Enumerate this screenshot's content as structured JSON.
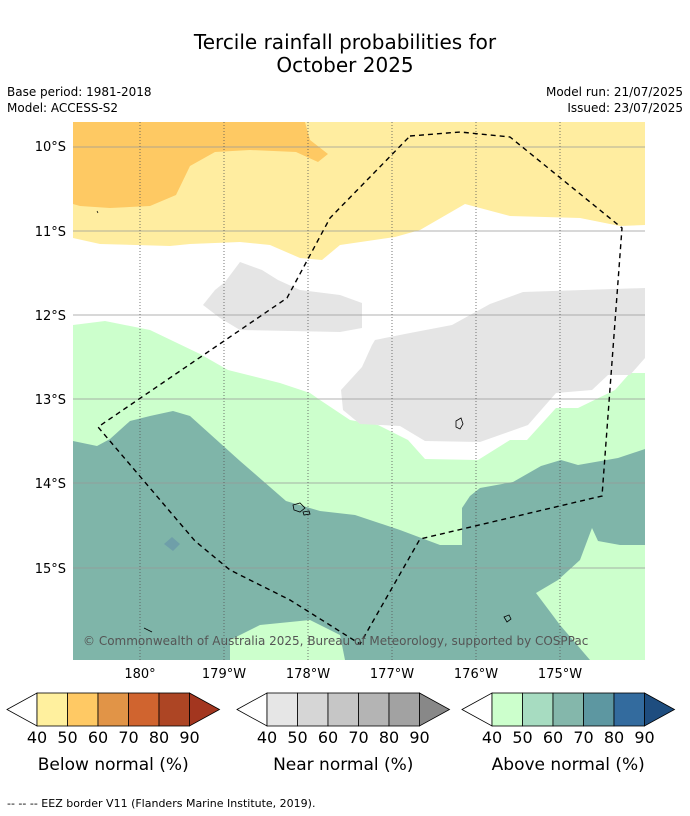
{
  "title_line1": "Tercile rainfall probabilities for",
  "title_line2": "October 2025",
  "meta": {
    "base_period": "Base period: 1981-2018",
    "model": "Model: ACCESS-S2",
    "model_run": "Model run: 21/07/2025",
    "issued": "Issued: 23/07/2025"
  },
  "map": {
    "lat_labels": [
      "10°S",
      "11°S",
      "12°S",
      "13°S",
      "14°S",
      "15°S"
    ],
    "lon_labels": [
      "180°",
      "179°W",
      "178°W",
      "177°W",
      "176°W",
      "175°W"
    ],
    "copyright": "© Commonwealth of Australia 2025, Bureau of Meteorology, supported by COSPPac",
    "colors": {
      "below_40": "#ffeda0",
      "below_50": "#fec963",
      "near_40": "#e5e5e5",
      "above_40": "#ccffcc",
      "above_50": "#a1d3bd",
      "above_60": "#7fb5a9",
      "eez_line": "#000000"
    }
  },
  "legends": [
    {
      "title": "Below normal (%)",
      "ticks": [
        "40",
        "50",
        "60",
        "70",
        "80",
        "90"
      ],
      "colors": [
        "#fff09e",
        "#ffc964",
        "#e19447",
        "#d0642f",
        "#ad4524",
        "#a3361f"
      ]
    },
    {
      "title": "Near normal (%)",
      "ticks": [
        "40",
        "50",
        "60",
        "70",
        "80",
        "90"
      ],
      "colors": [
        "#e6e6e6",
        "#d6d6d6",
        "#c6c6c6",
        "#b4b4b4",
        "#a2a2a2",
        "#888888"
      ]
    },
    {
      "title": "Above normal (%)",
      "ticks": [
        "40",
        "50",
        "60",
        "70",
        "80",
        "90"
      ],
      "colors": [
        "#ccffcc",
        "#a7dcc1",
        "#84b7ab",
        "#5d97a1",
        "#336b9e",
        "#1e4d7f"
      ]
    }
  ],
  "footnote": "--  --  -- EEZ border V11 (Flanders Marine Institute, 2019)."
}
